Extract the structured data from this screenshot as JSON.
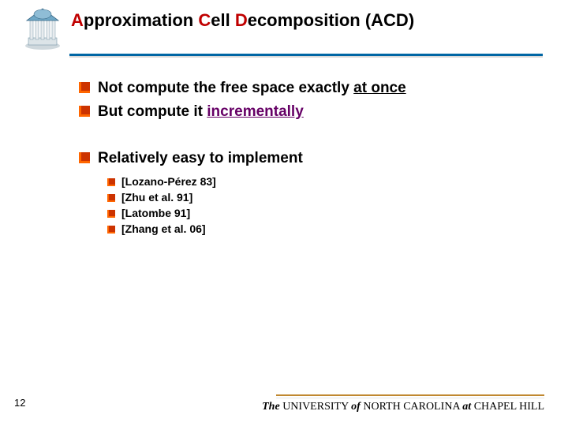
{
  "title": {
    "parts": [
      {
        "t": "A",
        "accent": true
      },
      {
        "t": "pproximation "
      },
      {
        "t": "C",
        "accent": true
      },
      {
        "t": "ell "
      },
      {
        "t": "D",
        "accent": true
      },
      {
        "t": "ecomposition (ACD)"
      }
    ]
  },
  "bullets": [
    {
      "pre": "Not compute the free space exactly ",
      "emph": "at once",
      "emphClass": "underline"
    },
    {
      "pre": "But compute it ",
      "emph": "incrementally",
      "emphClass": "underline purple"
    }
  ],
  "bullet2": "Relatively easy to implement",
  "refs": [
    "[Lozano-Pérez 83]",
    "[Zhu et al. 91]",
    "[Latombe 91]",
    "[Zhang et al. 06]"
  ],
  "pageNumber": "12",
  "footer": {
    "the": "The",
    "uni": " UNIVERSITY ",
    "of": "of",
    "rest": " NORTH CAROLINA ",
    "at": "at",
    "ch": " CHAPEL HILL"
  },
  "colors": {
    "accent_red": "#c00000",
    "rule_blue": "#0066a4",
    "footer_gold": "#c08830",
    "bullet_orange": "#ff6600",
    "bullet_red": "#cc3300",
    "purple": "#660066",
    "logo_dome": "#6fa8c7",
    "logo_col": "#e8ecef",
    "logo_shadow": "#9fb8c8"
  }
}
